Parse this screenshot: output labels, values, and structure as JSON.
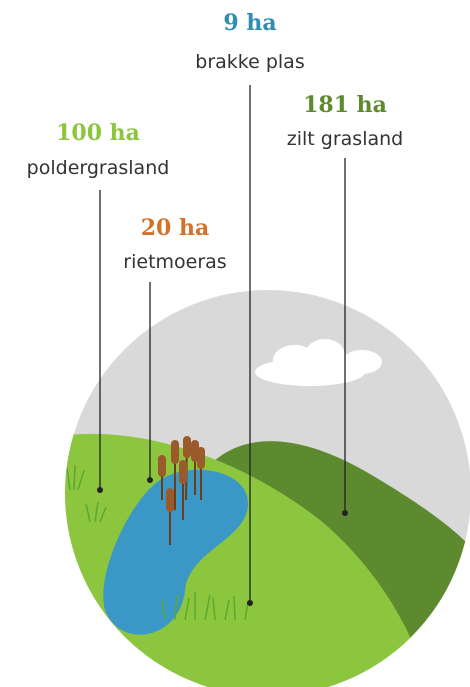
{
  "labels": [
    {
      "amount": "9 ha",
      "name": "brakke plas",
      "color": "#2f8fb3"
    },
    {
      "amount": "181 ha",
      "name": "zilt grasland",
      "color": "#5e8a2f"
    },
    {
      "amount": "100 ha",
      "name": "poldergrasland",
      "color": "#8cc63f"
    },
    {
      "amount": "20 ha",
      "name": "rietmoeras",
      "color": "#d4722b"
    }
  ]
}
